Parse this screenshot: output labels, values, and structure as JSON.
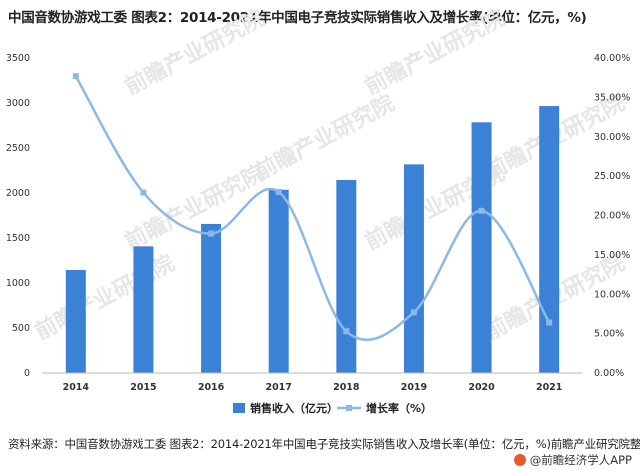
{
  "title": "中国音数协游戏工委 图表2：2014-2021年中国电子竞技实际销售收入及增长率(单位：亿元，%)",
  "footer": {
    "source": "资料来源：中国音数协游戏工委 图表2：2014-2021年中国电子竞技实际销售收入及增长率(单位：亿元，%)前瞻产业研究院整理",
    "brand": "@前瞻经济学人APP"
  },
  "watermark": "前瞻产业研究院",
  "colors": {
    "bar": "#3b82d6",
    "line": "#8cb8e8",
    "text": "#222222"
  },
  "chart_data": {
    "type": "bar",
    "categories": [
      "2014",
      "2015",
      "2016",
      "2017",
      "2018",
      "2019",
      "2020",
      "2021"
    ],
    "series": [
      {
        "name": "销售收入（亿元）",
        "type": "bar",
        "axis": "left",
        "values": [
          1145,
          1407,
          1656,
          2036,
          2145,
          2318,
          2786,
          2966
        ]
      },
      {
        "name": "增长率（%）",
        "type": "line",
        "smooth": true,
        "axis": "right",
        "values": [
          37.7,
          22.9,
          17.7,
          23.0,
          5.3,
          7.7,
          20.6,
          6.4
        ]
      }
    ],
    "y_left": {
      "ylim": [
        0,
        3500
      ],
      "ticks": [
        "0",
        "500",
        "1000",
        "1500",
        "2000",
        "2500",
        "3000",
        "3500"
      ]
    },
    "y_right": {
      "ylim": [
        0,
        40
      ],
      "ticks": [
        "0.00%",
        "5.00%",
        "10.00%",
        "15.00%",
        "20.00%",
        "25.00%",
        "30.00%",
        "35.00%",
        "40.00%"
      ]
    },
    "legend": {
      "placement": "bottom-center",
      "items": [
        "销售收入（亿元）",
        "增长率（%）"
      ]
    },
    "grid": false
  }
}
